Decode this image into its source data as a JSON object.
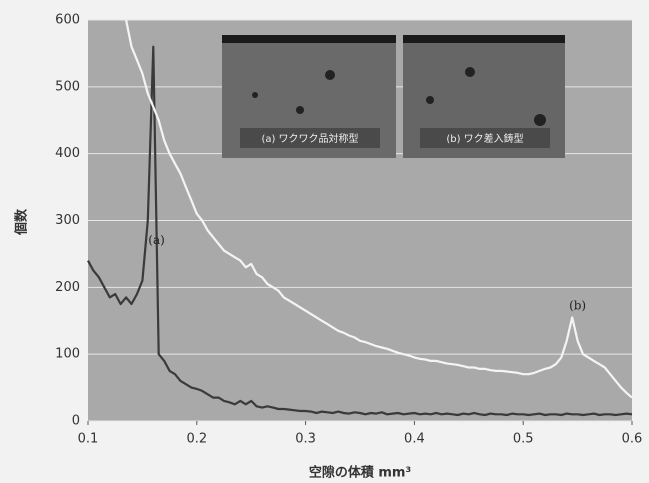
{
  "chart_data": {
    "type": "line",
    "y_label": "個数",
    "x_label": "空隙の体積 mm³",
    "xlim": [
      0.1,
      0.6
    ],
    "xticks": [
      0.1,
      0.2,
      0.3,
      0.4,
      0.5,
      0.6
    ],
    "ylim": [
      0,
      600
    ],
    "yticks": [
      0,
      100,
      200,
      300,
      400,
      500,
      600
    ],
    "grid": true,
    "x": [
      0.1,
      0.105,
      0.11,
      0.115,
      0.12,
      0.125,
      0.13,
      0.135,
      0.14,
      0.145,
      0.15,
      0.155,
      0.16,
      0.165,
      0.17,
      0.175,
      0.18,
      0.185,
      0.19,
      0.195,
      0.2,
      0.205,
      0.21,
      0.215,
      0.22,
      0.225,
      0.23,
      0.235,
      0.24,
      0.245,
      0.25,
      0.255,
      0.26,
      0.265,
      0.27,
      0.275,
      0.28,
      0.285,
      0.29,
      0.295,
      0.3,
      0.305,
      0.31,
      0.315,
      0.32,
      0.325,
      0.33,
      0.335,
      0.34,
      0.345,
      0.35,
      0.355,
      0.36,
      0.365,
      0.37,
      0.375,
      0.38,
      0.385,
      0.39,
      0.395,
      0.4,
      0.405,
      0.41,
      0.415,
      0.42,
      0.425,
      0.43,
      0.435,
      0.44,
      0.445,
      0.45,
      0.455,
      0.46,
      0.465,
      0.47,
      0.475,
      0.48,
      0.485,
      0.49,
      0.495,
      0.5,
      0.505,
      0.51,
      0.515,
      0.52,
      0.525,
      0.53,
      0.535,
      0.54,
      0.545,
      0.55,
      0.555,
      0.56,
      0.565,
      0.57,
      0.575,
      0.58,
      0.585,
      0.59,
      0.595,
      0.6
    ],
    "series": [
      {
        "color": "#3a3a3a",
        "values": [
          240,
          225,
          215,
          200,
          185,
          190,
          175,
          185,
          175,
          190,
          210,
          300,
          560,
          100,
          90,
          75,
          70,
          60,
          55,
          50,
          48,
          45,
          40,
          35,
          35,
          30,
          28,
          25,
          30,
          25,
          30,
          22,
          20,
          22,
          20,
          18,
          18,
          17,
          16,
          15,
          15,
          14,
          12,
          14,
          13,
          12,
          14,
          12,
          11,
          13,
          12,
          10,
          12,
          11,
          13,
          10,
          11,
          12,
          10,
          11,
          12,
          10,
          11,
          10,
          12,
          10,
          11,
          10,
          9,
          11,
          10,
          12,
          10,
          9,
          11,
          10,
          10,
          9,
          11,
          10,
          10,
          9,
          10,
          11,
          9,
          10,
          10,
          9,
          11,
          10,
          10,
          9,
          10,
          11,
          9,
          10,
          10,
          9,
          10,
          11,
          10
        ]
      },
      {
        "color": "#f4f4f4",
        "values": [
          null,
          null,
          null,
          null,
          null,
          null,
          null,
          600,
          560,
          540,
          520,
          490,
          470,
          450,
          420,
          400,
          385,
          370,
          350,
          330,
          310,
          300,
          285,
          275,
          265,
          255,
          250,
          245,
          240,
          230,
          235,
          220,
          215,
          205,
          200,
          195,
          185,
          180,
          175,
          170,
          165,
          160,
          155,
          150,
          145,
          140,
          135,
          132,
          128,
          125,
          120,
          118,
          115,
          112,
          110,
          108,
          105,
          102,
          100,
          98,
          95,
          93,
          92,
          90,
          90,
          88,
          86,
          85,
          84,
          82,
          80,
          80,
          78,
          78,
          76,
          75,
          75,
          74,
          73,
          72,
          70,
          70,
          72,
          75,
          78,
          80,
          85,
          95,
          120,
          155,
          120,
          100,
          95,
          90,
          85,
          80,
          70,
          60,
          50,
          42,
          35
        ]
      }
    ],
    "annotations": [
      {
        "text": "(a)",
        "x": 0.163,
        "y": 270
      },
      {
        "text": "(b)",
        "x": 0.55,
        "y": 172
      }
    ],
    "insets": [
      {
        "label": "(a) ワクワク品対称型"
      },
      {
        "label": "(b) ワク差入鋳型"
      }
    ]
  }
}
